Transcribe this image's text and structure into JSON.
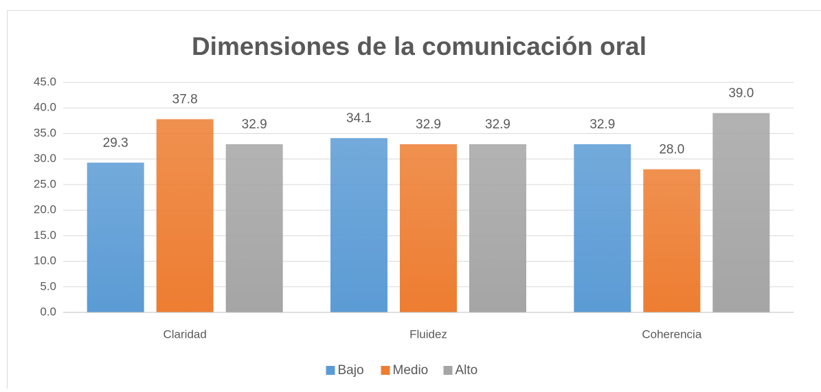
{
  "chart_data": {
    "type": "bar",
    "title": "Dimensiones de la comunicación oral",
    "categories": [
      "Claridad",
      "Fluidez",
      "Coherencia"
    ],
    "series": [
      {
        "name": "Bajo",
        "color": "#5b9bd5",
        "values": [
          29.3,
          34.1,
          32.9
        ],
        "value_labels": [
          "29.3",
          "34.1",
          "32.9"
        ]
      },
      {
        "name": "Medio",
        "color": "#ed7d31",
        "values": [
          37.8,
          32.9,
          28
        ],
        "value_labels": [
          "37.8",
          "32.9",
          "28.0"
        ]
      },
      {
        "name": "Alto",
        "color": "#a5a5a5",
        "values": [
          32.9,
          32.9,
          39
        ],
        "value_labels": [
          "32.9",
          "32.9",
          "39.0"
        ]
      }
    ],
    "ylim": [
      0,
      45
    ],
    "yticks": [
      {
        "value": 0,
        "label": "0.0"
      },
      {
        "value": 5,
        "label": "5.0"
      },
      {
        "value": 10,
        "label": "10.0"
      },
      {
        "value": 15,
        "label": "15.0"
      },
      {
        "value": 20,
        "label": "20.0"
      },
      {
        "value": 25,
        "label": "25.0"
      },
      {
        "value": 30,
        "label": "30.0"
      },
      {
        "value": 35,
        "label": "35.0"
      },
      {
        "value": 40,
        "label": "40.0"
      },
      {
        "value": 45,
        "label": "45.0"
      }
    ],
    "grid": true,
    "legend": "bottom"
  }
}
